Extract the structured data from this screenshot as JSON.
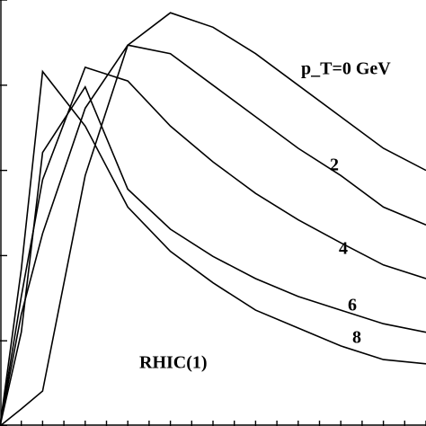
{
  "chart_data": {
    "type": "line",
    "annotation": "RHIC(1)",
    "x": [
      0,
      1,
      2,
      4,
      6,
      8,
      10,
      12,
      14,
      16,
      18,
      20
    ],
    "series": [
      {
        "name": "p_T=0 GeV",
        "color": "#000000",
        "values": [
          0,
          0.2,
          0.41,
          2.94,
          4.47,
          4.85,
          4.68,
          4.37,
          4.0,
          3.63,
          3.26,
          3.0
        ]
      },
      {
        "name": "2",
        "color": "#000000",
        "values": [
          0,
          1.31,
          2.26,
          3.73,
          4.47,
          4.37,
          4.0,
          3.63,
          3.26,
          2.94,
          2.57,
          2.36
        ]
      },
      {
        "name": "4",
        "color": "#000000",
        "values": [
          0,
          1.52,
          2.89,
          4.21,
          4.05,
          3.52,
          3.1,
          2.73,
          2.42,
          2.15,
          1.89,
          1.73
        ]
      },
      {
        "name": "6",
        "color": "#000000",
        "values": [
          0,
          1.1,
          3.21,
          3.98,
          2.78,
          2.31,
          1.99,
          1.73,
          1.52,
          1.36,
          1.2,
          1.1
        ]
      },
      {
        "name": "8",
        "color": "#000000",
        "values": [
          0,
          1.84,
          4.16,
          3.52,
          2.57,
          2.05,
          1.68,
          1.36,
          1.15,
          0.94,
          0.78,
          0.73
        ]
      }
    ],
    "xlim": [
      0,
      20
    ],
    "ylim": [
      0,
      5
    ],
    "xticks": [
      0,
      1,
      2,
      3,
      4,
      5,
      6,
      7,
      8,
      9,
      10,
      11,
      12,
      13,
      14,
      15,
      16,
      17,
      18,
      19,
      20
    ],
    "yticks": [
      0,
      1,
      2,
      3,
      4,
      5
    ]
  }
}
